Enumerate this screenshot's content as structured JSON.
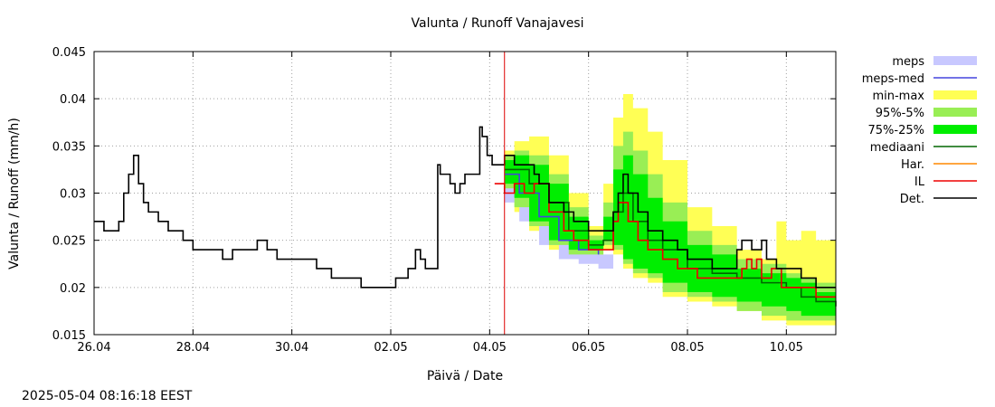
{
  "chart_data": {
    "type": "area",
    "title": "Valunta / Runoff  Vanajavesi",
    "xlabel": "Päivä / Date",
    "ylabel": "Valunta / Runoff (mm/h)",
    "timestamp": "2025-05-04 08:16:18 EEST",
    "xlim": [
      0,
      15
    ],
    "ylim": [
      0.015,
      0.045
    ],
    "grid": true,
    "x_unit": "days since 26.04",
    "x_ticks": [
      {
        "value": 0,
        "label": "26.04"
      },
      {
        "value": 2,
        "label": "28.04"
      },
      {
        "value": 4,
        "label": "30.04"
      },
      {
        "value": 6,
        "label": "02.05"
      },
      {
        "value": 8,
        "label": "04.05"
      },
      {
        "value": 10,
        "label": "06.05"
      },
      {
        "value": 12,
        "label": "08.05"
      },
      {
        "value": 14,
        "label": "10.05"
      }
    ],
    "y_ticks": [
      0.015,
      0.02,
      0.025,
      0.03,
      0.035,
      0.04,
      0.045
    ],
    "forecast_start": 8.3,
    "legend": {
      "position": "right",
      "entries": [
        {
          "label": "meps",
          "color": "#c8c8ff",
          "style": "band"
        },
        {
          "label": "meps-med",
          "color": "#4444dd",
          "style": "line"
        },
        {
          "label": "min-max",
          "color": "#ffff55",
          "style": "band"
        },
        {
          "label": "95%-5%",
          "color": "#99ee55",
          "style": "band"
        },
        {
          "label": "75%-25%",
          "color": "#00ee00",
          "style": "band"
        },
        {
          "label": "mediaani",
          "color": "#006600",
          "style": "line"
        },
        {
          "label": "Har.",
          "color": "#ff8800",
          "style": "line"
        },
        {
          "label": "IL",
          "color": "#ee0000",
          "style": "line"
        },
        {
          "label": "Det.",
          "color": "#000000",
          "style": "line"
        }
      ]
    },
    "series": [
      {
        "name": "min-max",
        "kind": "band",
        "color": "#ffff55",
        "x": [
          8.3,
          8.5,
          8.8,
          9.2,
          9.6,
          10.0,
          10.3,
          10.5,
          10.7,
          10.9,
          11.2,
          11.5,
          12.0,
          12.5,
          13.0,
          13.5,
          13.8,
          14.0,
          14.3,
          14.6,
          15.0
        ],
        "upper": [
          0.0345,
          0.0355,
          0.036,
          0.034,
          0.03,
          0.0265,
          0.031,
          0.038,
          0.0405,
          0.039,
          0.0365,
          0.0335,
          0.0285,
          0.0265,
          0.024,
          0.023,
          0.027,
          0.025,
          0.026,
          0.025,
          0.0225
        ],
        "lower": [
          0.031,
          0.03,
          0.028,
          0.026,
          0.024,
          0.023,
          0.023,
          0.024,
          0.0235,
          0.022,
          0.021,
          0.0205,
          0.019,
          0.0185,
          0.018,
          0.0175,
          0.0165,
          0.0165,
          0.016,
          0.016,
          0.016
        ]
      },
      {
        "name": "meps",
        "kind": "band",
        "color": "#c8c8ff",
        "x": [
          8.3,
          8.6,
          9.0,
          9.4,
          9.8,
          10.2,
          10.5
        ],
        "upper": [
          0.0325,
          0.0305,
          0.028,
          0.0255,
          0.024,
          0.0235,
          0.0235
        ],
        "lower": [
          0.031,
          0.029,
          0.027,
          0.0245,
          0.023,
          0.0225,
          0.022
        ]
      },
      {
        "name": "95%-5%",
        "kind": "band",
        "color": "#99ee55",
        "x": [
          8.3,
          8.5,
          8.8,
          9.2,
          9.6,
          10.0,
          10.3,
          10.5,
          10.7,
          10.9,
          11.2,
          11.5,
          12.0,
          12.5,
          13.0,
          13.5,
          13.8,
          14.0,
          14.3,
          14.6,
          15.0
        ],
        "upper": [
          0.034,
          0.0345,
          0.034,
          0.032,
          0.0285,
          0.0255,
          0.029,
          0.035,
          0.0365,
          0.0345,
          0.032,
          0.029,
          0.026,
          0.0245,
          0.023,
          0.0225,
          0.0225,
          0.0215,
          0.021,
          0.0205,
          0.0205
        ],
        "lower": [
          0.031,
          0.0305,
          0.0285,
          0.0265,
          0.0245,
          0.0235,
          0.0235,
          0.0245,
          0.024,
          0.0225,
          0.0215,
          0.021,
          0.0195,
          0.019,
          0.0185,
          0.0175,
          0.017,
          0.017,
          0.0165,
          0.0165,
          0.0165
        ]
      },
      {
        "name": "75%-25%",
        "kind": "band",
        "color": "#00ee00",
        "x": [
          8.3,
          8.5,
          8.8,
          9.2,
          9.6,
          10.0,
          10.3,
          10.5,
          10.7,
          10.9,
          11.2,
          11.5,
          12.0,
          12.5,
          13.0,
          13.5,
          13.8,
          14.0,
          14.3,
          14.6,
          15.0
        ],
        "upper": [
          0.0335,
          0.034,
          0.033,
          0.031,
          0.0275,
          0.025,
          0.0275,
          0.0325,
          0.034,
          0.032,
          0.0295,
          0.027,
          0.0245,
          0.0235,
          0.022,
          0.0215,
          0.0215,
          0.021,
          0.0205,
          0.0195,
          0.0195
        ],
        "lower": [
          0.0315,
          0.031,
          0.0295,
          0.027,
          0.025,
          0.024,
          0.024,
          0.025,
          0.0245,
          0.023,
          0.022,
          0.0215,
          0.0205,
          0.0195,
          0.019,
          0.0185,
          0.018,
          0.018,
          0.0175,
          0.017,
          0.017
        ]
      },
      {
        "name": "meps-med",
        "kind": "line",
        "color": "#4444dd",
        "x": [
          8.3,
          8.6,
          9.0,
          9.4,
          9.8,
          10.2
        ],
        "y": [
          0.032,
          0.03,
          0.0275,
          0.025,
          0.024,
          0.0235
        ]
      },
      {
        "name": "mediaani",
        "kind": "line",
        "color": "#006600",
        "x": [
          8.3,
          8.5,
          8.8,
          9.2,
          9.6,
          10.0,
          10.3,
          10.5,
          10.7,
          10.9,
          11.2,
          11.5,
          12.0,
          12.5,
          13.0,
          13.5,
          13.8,
          14.0,
          14.3,
          14.6,
          15.0
        ],
        "y": [
          0.0325,
          0.0325,
          0.031,
          0.029,
          0.026,
          0.0245,
          0.025,
          0.028,
          0.03,
          0.027,
          0.025,
          0.024,
          0.022,
          0.0215,
          0.021,
          0.0205,
          0.0205,
          0.02,
          0.019,
          0.0185,
          0.018
        ]
      },
      {
        "name": "IL",
        "kind": "line",
        "color": "#ee0000",
        "x": [
          8.1,
          8.3,
          8.5,
          8.7,
          8.9,
          9.2,
          9.5,
          9.7,
          10.0,
          10.3,
          10.5,
          10.6,
          10.7,
          10.8,
          11.0,
          11.2,
          11.5,
          11.8,
          12.2,
          12.6,
          13.0,
          13.1,
          13.2,
          13.3,
          13.4,
          13.5,
          13.6,
          13.7,
          13.9,
          14.2,
          14.6,
          15.0
        ],
        "y": [
          0.031,
          0.03,
          0.031,
          0.03,
          0.031,
          0.028,
          0.026,
          0.025,
          0.024,
          0.024,
          0.027,
          0.029,
          0.029,
          0.027,
          0.025,
          0.024,
          0.023,
          0.022,
          0.021,
          0.021,
          0.021,
          0.022,
          0.023,
          0.022,
          0.023,
          0.021,
          0.021,
          0.022,
          0.02,
          0.02,
          0.019,
          0.019
        ]
      },
      {
        "name": "Det.",
        "kind": "line",
        "color": "#000000",
        "x": [
          0.0,
          0.2,
          0.4,
          0.5,
          0.6,
          0.7,
          0.8,
          0.9,
          1.0,
          1.1,
          1.2,
          1.3,
          1.5,
          1.8,
          2.0,
          2.3,
          2.6,
          2.8,
          2.9,
          3.0,
          3.3,
          3.5,
          3.6,
          3.7,
          3.9,
          4.0,
          4.5,
          4.8,
          5.0,
          5.4,
          5.5,
          6.0,
          6.1,
          6.2,
          6.35,
          6.5,
          6.6,
          6.7,
          6.8,
          6.9,
          6.95,
          7.0,
          7.2,
          7.3,
          7.4,
          7.5,
          7.6,
          7.8,
          7.85,
          7.95,
          8.05,
          8.15,
          8.3,
          8.5,
          8.7,
          8.9,
          9.0,
          9.2,
          9.5,
          9.7,
          10.0,
          10.2,
          10.4,
          10.5,
          10.6,
          10.7,
          10.8,
          11.0,
          11.2,
          11.5,
          11.8,
          12.0,
          12.2,
          12.5,
          12.8,
          13.0,
          13.1,
          13.2,
          13.3,
          13.4,
          13.5,
          13.6,
          13.7,
          13.8,
          14.0,
          14.3,
          14.6,
          15.0
        ],
        "y": [
          0.027,
          0.026,
          0.026,
          0.027,
          0.03,
          0.032,
          0.034,
          0.031,
          0.029,
          0.028,
          0.028,
          0.027,
          0.026,
          0.025,
          0.024,
          0.024,
          0.023,
          0.024,
          0.024,
          0.024,
          0.025,
          0.024,
          0.024,
          0.023,
          0.023,
          0.023,
          0.022,
          0.021,
          0.021,
          0.02,
          0.02,
          0.02,
          0.021,
          0.021,
          0.022,
          0.024,
          0.023,
          0.022,
          0.022,
          0.022,
          0.033,
          0.032,
          0.031,
          0.03,
          0.031,
          0.032,
          0.032,
          0.037,
          0.036,
          0.034,
          0.033,
          0.033,
          0.034,
          0.033,
          0.033,
          0.032,
          0.031,
          0.029,
          0.028,
          0.027,
          0.026,
          0.026,
          0.026,
          0.028,
          0.03,
          0.032,
          0.03,
          0.028,
          0.026,
          0.025,
          0.024,
          0.023,
          0.023,
          0.022,
          0.022,
          0.024,
          0.025,
          0.025,
          0.024,
          0.024,
          0.025,
          0.023,
          0.023,
          0.022,
          0.022,
          0.021,
          0.02,
          0.02
        ]
      }
    ]
  }
}
